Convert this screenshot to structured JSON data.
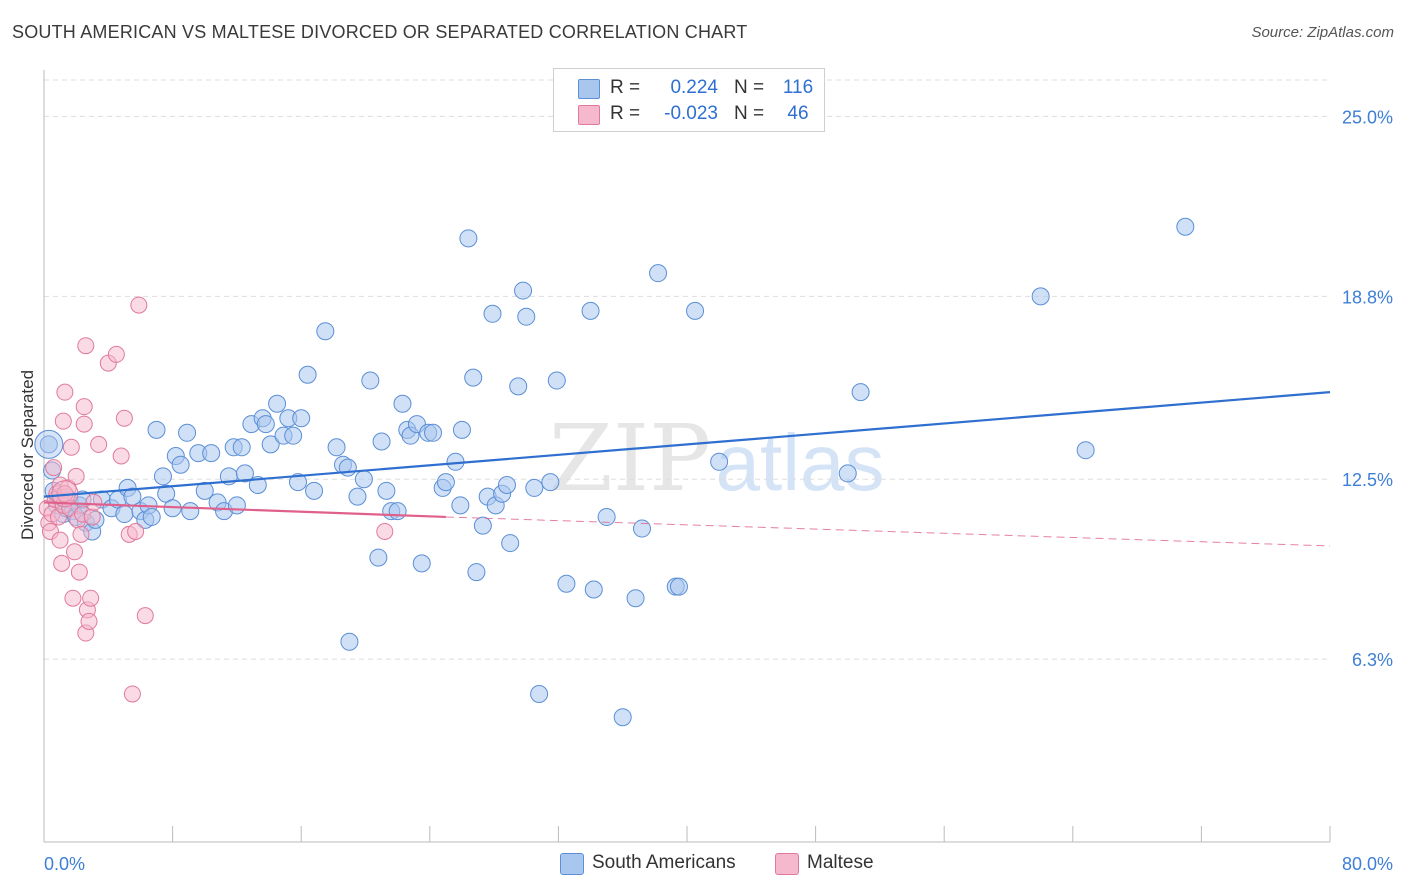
{
  "chart_data": {
    "type": "scatter",
    "title": "SOUTH AMERICAN VS MALTESE DIVORCED OR SEPARATED CORRELATION CHART",
    "source": "Source: ZipAtlas.com",
    "ylabel": "Divorced or Separated",
    "xlabel": "",
    "xlim": [
      0,
      80
    ],
    "ylim": [
      0,
      26.6
    ],
    "x_tick_labels": [
      "0.0%",
      "80.0%"
    ],
    "y_ticks": [
      6.3,
      12.5,
      18.8,
      25.0
    ],
    "y_tick_labels": [
      "6.3%",
      "12.5%",
      "18.8%",
      "25.0%"
    ],
    "grid": "horizontal dashed",
    "watermark": "ZIPatlas",
    "colors": {
      "south_fill": "#a9c6ef",
      "south_stroke": "#5b8fd6",
      "south_line": "#2f6fd0",
      "maltese_fill": "#f6b8cc",
      "maltese_stroke": "#e07a9c",
      "maltese_line": "#e0608c",
      "tick_text": "#3d7fd6",
      "grid": "#dddddd"
    },
    "stats": [
      {
        "r_label": "R =",
        "r_value": "0.224",
        "n_label": "N =",
        "n_value": "116"
      },
      {
        "r_label": "R =",
        "r_value": "-0.023",
        "n_label": "N =",
        "n_value": "46"
      }
    ],
    "legend": [
      "South Americans",
      "Maltese"
    ],
    "series": [
      {
        "name": "South Americans",
        "trend": {
          "x0": 0,
          "y0": 11.9,
          "x1": 80,
          "y1": 15.5
        },
        "points": [
          [
            0.3,
            13.7
          ],
          [
            0.5,
            12.8
          ],
          [
            0.6,
            12.1
          ],
          [
            0.8,
            11.6
          ],
          [
            1.0,
            11.9
          ],
          [
            1.2,
            11.3
          ],
          [
            1.4,
            11.5
          ],
          [
            1.6,
            11.8
          ],
          [
            1.8,
            11.4
          ],
          [
            2.0,
            11.2
          ],
          [
            2.2,
            11.6
          ],
          [
            2.4,
            11.8
          ],
          [
            2.6,
            11.0
          ],
          [
            3.0,
            10.7
          ],
          [
            3.2,
            11.1
          ],
          [
            3.6,
            11.8
          ],
          [
            4.2,
            11.5
          ],
          [
            4.6,
            11.8
          ],
          [
            5.0,
            11.3
          ],
          [
            5.2,
            12.2
          ],
          [
            5.5,
            11.9
          ],
          [
            6.0,
            11.4
          ],
          [
            6.3,
            11.1
          ],
          [
            6.5,
            11.6
          ],
          [
            6.7,
            11.2
          ],
          [
            7.0,
            14.2
          ],
          [
            7.4,
            12.6
          ],
          [
            7.6,
            12.0
          ],
          [
            8.0,
            11.5
          ],
          [
            8.2,
            13.3
          ],
          [
            8.5,
            13.0
          ],
          [
            8.9,
            14.1
          ],
          [
            9.1,
            11.4
          ],
          [
            9.6,
            13.4
          ],
          [
            10.0,
            12.1
          ],
          [
            10.4,
            13.4
          ],
          [
            10.8,
            11.7
          ],
          [
            11.2,
            11.4
          ],
          [
            11.5,
            12.6
          ],
          [
            11.8,
            13.6
          ],
          [
            12.0,
            11.6
          ],
          [
            12.3,
            13.6
          ],
          [
            12.5,
            12.7
          ],
          [
            12.9,
            14.4
          ],
          [
            13.3,
            12.3
          ],
          [
            13.6,
            14.6
          ],
          [
            13.8,
            14.4
          ],
          [
            14.1,
            13.7
          ],
          [
            14.5,
            15.1
          ],
          [
            14.9,
            14.0
          ],
          [
            15.2,
            14.6
          ],
          [
            15.5,
            14.0
          ],
          [
            15.8,
            12.4
          ],
          [
            16.0,
            14.6
          ],
          [
            16.4,
            16.1
          ],
          [
            16.8,
            12.1
          ],
          [
            17.5,
            17.6
          ],
          [
            18.2,
            13.6
          ],
          [
            18.6,
            13.0
          ],
          [
            18.9,
            12.9
          ],
          [
            19.0,
            6.9
          ],
          [
            19.5,
            11.9
          ],
          [
            19.9,
            12.5
          ],
          [
            20.3,
            15.9
          ],
          [
            20.8,
            9.8
          ],
          [
            21.0,
            13.8
          ],
          [
            21.3,
            12.1
          ],
          [
            21.6,
            11.4
          ],
          [
            22.0,
            11.4
          ],
          [
            22.3,
            15.1
          ],
          [
            22.6,
            14.2
          ],
          [
            22.8,
            14.0
          ],
          [
            23.2,
            14.4
          ],
          [
            23.5,
            9.6
          ],
          [
            23.9,
            14.1
          ],
          [
            24.2,
            14.1
          ],
          [
            24.8,
            12.2
          ],
          [
            25.0,
            12.4
          ],
          [
            25.6,
            13.1
          ],
          [
            25.9,
            11.6
          ],
          [
            26.0,
            14.2
          ],
          [
            26.4,
            20.8
          ],
          [
            26.7,
            16.0
          ],
          [
            26.9,
            9.3
          ],
          [
            27.3,
            10.9
          ],
          [
            27.6,
            11.9
          ],
          [
            27.9,
            18.2
          ],
          [
            28.1,
            11.6
          ],
          [
            28.5,
            12.0
          ],
          [
            28.8,
            12.3
          ],
          [
            29.0,
            10.3
          ],
          [
            29.5,
            15.7
          ],
          [
            29.8,
            19.0
          ],
          [
            30.0,
            18.1
          ],
          [
            30.5,
            12.2
          ],
          [
            30.8,
            5.1
          ],
          [
            31.5,
            12.4
          ],
          [
            31.9,
            15.9
          ],
          [
            32.5,
            8.9
          ],
          [
            34.0,
            18.3
          ],
          [
            34.2,
            8.7
          ],
          [
            35.0,
            11.2
          ],
          [
            36.0,
            4.3
          ],
          [
            36.8,
            8.4
          ],
          [
            37.2,
            10.8
          ],
          [
            38.2,
            19.6
          ],
          [
            39.3,
            8.8
          ],
          [
            39.5,
            8.8
          ],
          [
            40.5,
            18.3
          ],
          [
            42.0,
            13.1
          ],
          [
            50.0,
            12.7
          ],
          [
            50.8,
            15.5
          ],
          [
            62.0,
            18.8
          ],
          [
            64.8,
            13.5
          ],
          [
            71.0,
            21.2
          ]
        ]
      },
      {
        "name": "Maltese",
        "trend": {
          "x0": 0,
          "y0": 11.7,
          "x1": 25,
          "y1": 11.2
        },
        "trend_ext": {
          "x0": 25,
          "y0": 11.2,
          "x1": 80,
          "y1": 10.2
        },
        "points": [
          [
            0.2,
            11.5
          ],
          [
            0.3,
            11.0
          ],
          [
            0.4,
            10.7
          ],
          [
            0.5,
            11.3
          ],
          [
            0.6,
            12.9
          ],
          [
            0.7,
            11.8
          ],
          [
            0.8,
            12.0
          ],
          [
            0.9,
            11.2
          ],
          [
            1.0,
            12.3
          ],
          [
            1.0,
            10.4
          ],
          [
            1.1,
            9.6
          ],
          [
            1.2,
            14.5
          ],
          [
            1.2,
            11.6
          ],
          [
            1.3,
            15.5
          ],
          [
            1.4,
            11.9
          ],
          [
            1.5,
            12.2
          ],
          [
            1.6,
            11.5
          ],
          [
            1.7,
            13.6
          ],
          [
            1.8,
            8.4
          ],
          [
            1.9,
            10.0
          ],
          [
            2.0,
            12.6
          ],
          [
            2.1,
            11.1
          ],
          [
            2.2,
            9.3
          ],
          [
            2.3,
            10.6
          ],
          [
            2.4,
            11.3
          ],
          [
            2.5,
            14.4
          ],
          [
            2.5,
            15.0
          ],
          [
            2.6,
            17.1
          ],
          [
            2.6,
            7.2
          ],
          [
            2.7,
            8.0
          ],
          [
            2.8,
            7.6
          ],
          [
            2.9,
            8.4
          ],
          [
            3.0,
            11.2
          ],
          [
            3.1,
            11.7
          ],
          [
            3.4,
            13.7
          ],
          [
            4.0,
            16.5
          ],
          [
            4.5,
            16.8
          ],
          [
            4.8,
            13.3
          ],
          [
            5.0,
            14.6
          ],
          [
            5.3,
            10.6
          ],
          [
            5.5,
            5.1
          ],
          [
            5.7,
            10.7
          ],
          [
            5.9,
            18.5
          ],
          [
            6.3,
            7.8
          ],
          [
            21.2,
            10.7
          ],
          [
            1.3,
            12.0
          ]
        ]
      }
    ]
  }
}
